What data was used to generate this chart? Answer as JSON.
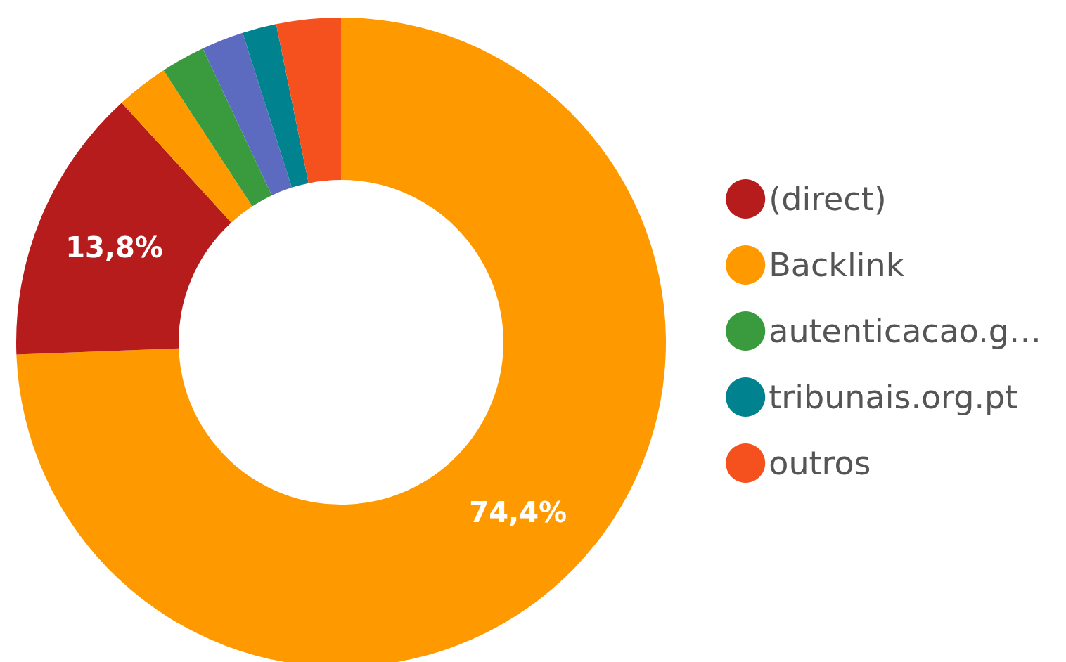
{
  "chart_data": {
    "type": "donut",
    "categories": [
      null,
      "(direct)",
      "Backlink",
      "autenticacao.g…",
      null,
      "tribunais.org.pt",
      "outros"
    ],
    "values": [
      74.4,
      13.8,
      2.6,
      2.2,
      2.1,
      1.7,
      3.2
    ],
    "colors": [
      "#ff9900",
      "#b71c1c",
      "#ff9900",
      "#3a9a3e",
      "#5c6bc0",
      "#00838f",
      "#f4511e"
    ],
    "value_labels": [
      "74,4%",
      "13,8%",
      null,
      null,
      null,
      null,
      null
    ],
    "legend": "right"
  }
}
